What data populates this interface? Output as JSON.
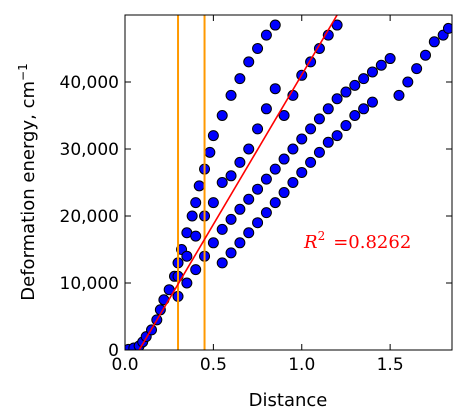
{
  "chart_data": {
    "type": "scatter",
    "title": "",
    "xlabel": "Distance",
    "ylabel": "Deformation energy, cm",
    "ylabel_superscript": "−1",
    "xlim": [
      0.0,
      1.85
    ],
    "ylim": [
      0,
      50000
    ],
    "x_ticks": [
      0.0,
      0.5,
      1.0,
      1.5
    ],
    "x_tick_labels": [
      "0.0",
      "0.5",
      "1.0",
      "1.5"
    ],
    "y_ticks": [
      0,
      10000,
      20000,
      30000,
      40000
    ],
    "y_tick_labels": [
      "0",
      "10,000",
      "20,000",
      "30,000",
      "40,000"
    ],
    "grid": false,
    "legend": "none",
    "series": [
      {
        "marker_color": "#0000ff",
        "edge_color": "#000000",
        "points": [
          [
            0.02,
            100
          ],
          [
            0.05,
            300
          ],
          [
            0.08,
            600
          ],
          [
            0.1,
            1200
          ],
          [
            0.12,
            2000
          ],
          [
            0.15,
            3000
          ],
          [
            0.18,
            4500
          ],
          [
            0.2,
            6000
          ],
          [
            0.22,
            7500
          ],
          [
            0.25,
            9000
          ],
          [
            0.28,
            11000
          ],
          [
            0.3,
            13000
          ],
          [
            0.32,
            15000
          ],
          [
            0.35,
            17500
          ],
          [
            0.38,
            20000
          ],
          [
            0.4,
            22000
          ],
          [
            0.42,
            24500
          ],
          [
            0.45,
            27000
          ],
          [
            0.48,
            29500
          ],
          [
            0.5,
            32000
          ],
          [
            0.55,
            35000
          ],
          [
            0.6,
            38000
          ],
          [
            0.65,
            40500
          ],
          [
            0.7,
            43000
          ],
          [
            0.75,
            45000
          ],
          [
            0.8,
            47000
          ],
          [
            0.85,
            48500
          ],
          [
            0.3,
            8000
          ],
          [
            0.35,
            10000
          ],
          [
            0.4,
            12000
          ],
          [
            0.45,
            14000
          ],
          [
            0.5,
            16000
          ],
          [
            0.55,
            18000
          ],
          [
            0.6,
            19500
          ],
          [
            0.65,
            21000
          ],
          [
            0.7,
            22500
          ],
          [
            0.75,
            24000
          ],
          [
            0.8,
            25500
          ],
          [
            0.85,
            27000
          ],
          [
            0.9,
            28500
          ],
          [
            0.95,
            30000
          ],
          [
            1.0,
            31500
          ],
          [
            1.05,
            33000
          ],
          [
            1.1,
            34500
          ],
          [
            1.15,
            36000
          ],
          [
            1.2,
            37500
          ],
          [
            1.25,
            38500
          ],
          [
            1.3,
            39500
          ],
          [
            1.35,
            40500
          ],
          [
            1.4,
            41500
          ],
          [
            1.45,
            42500
          ],
          [
            1.5,
            43500
          ],
          [
            1.55,
            38000
          ],
          [
            1.6,
            40000
          ],
          [
            1.65,
            42000
          ],
          [
            1.7,
            44000
          ],
          [
            1.75,
            46000
          ],
          [
            1.8,
            47000
          ],
          [
            1.83,
            48000
          ],
          [
            0.55,
            13000
          ],
          [
            0.6,
            14500
          ],
          [
            0.65,
            16000
          ],
          [
            0.7,
            17500
          ],
          [
            0.75,
            19000
          ],
          [
            0.8,
            20500
          ],
          [
            0.85,
            22000
          ],
          [
            0.9,
            23500
          ],
          [
            0.95,
            25000
          ],
          [
            1.0,
            26500
          ],
          [
            1.05,
            28000
          ],
          [
            1.1,
            29500
          ],
          [
            1.15,
            31000
          ],
          [
            1.2,
            32000
          ],
          [
            1.25,
            33500
          ],
          [
            1.3,
            35000
          ],
          [
            1.35,
            36000
          ],
          [
            1.4,
            37000
          ],
          [
            0.9,
            35000
          ],
          [
            0.95,
            38000
          ],
          [
            1.0,
            41000
          ],
          [
            1.05,
            43000
          ],
          [
            1.1,
            45000
          ],
          [
            1.15,
            47000
          ],
          [
            1.2,
            48500
          ],
          [
            0.7,
            30000
          ],
          [
            0.75,
            33000
          ],
          [
            0.8,
            36000
          ],
          [
            0.85,
            39000
          ],
          [
            0.6,
            26000
          ],
          [
            0.65,
            28000
          ],
          [
            0.5,
            22000
          ],
          [
            0.55,
            25000
          ],
          [
            0.45,
            20000
          ],
          [
            0.4,
            17000
          ],
          [
            0.35,
            14000
          ],
          [
            0.3,
            11000
          ]
        ]
      }
    ],
    "guide_lines": {
      "x_positions": [
        0.3,
        0.45
      ],
      "color": "#ff9900"
    },
    "fit_line": {
      "color": "#ff0000",
      "x": [
        0.08,
        1.2
      ],
      "y": [
        0,
        50000
      ]
    },
    "annotation": {
      "label": "R",
      "superscript": "2",
      "value": "=0.8262",
      "color": "#ff0000"
    }
  }
}
